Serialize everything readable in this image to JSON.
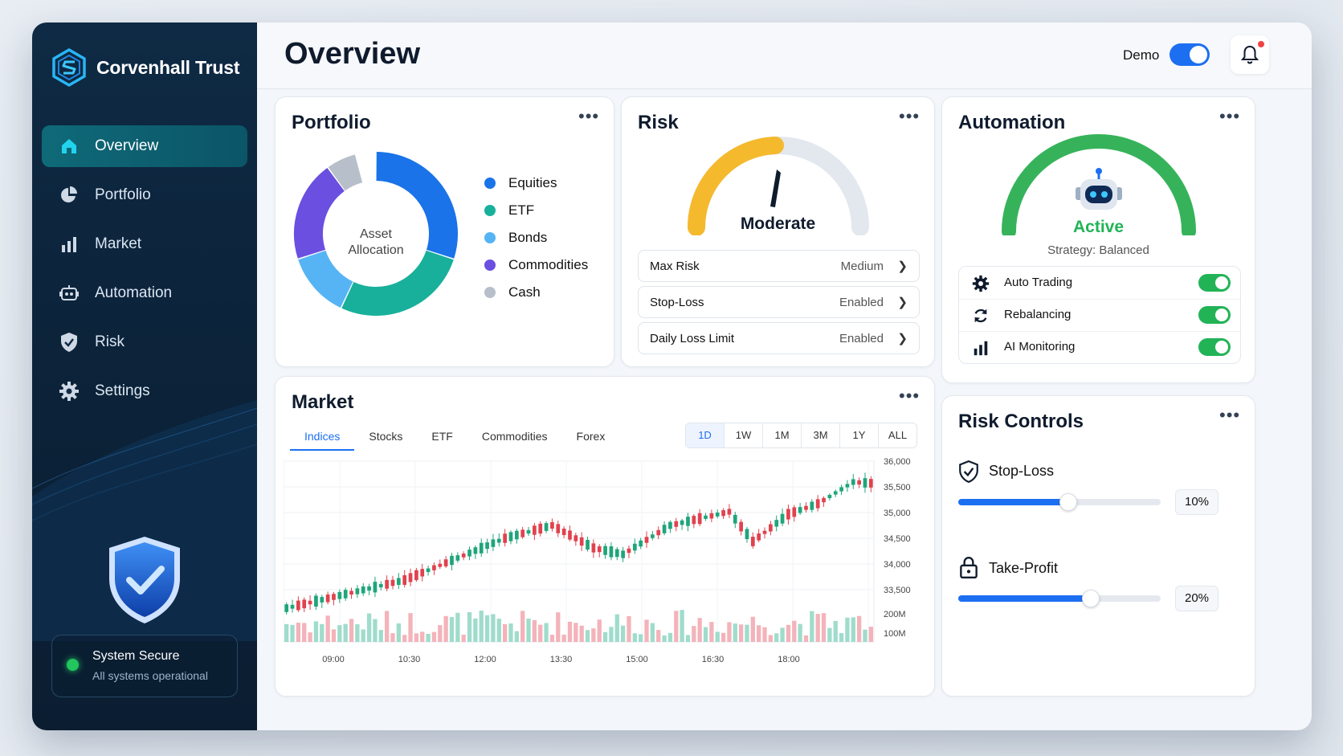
{
  "brand": {
    "name": "Corvenhall Trust",
    "logo_icon": "hexagon-s-logo"
  },
  "sidebar": {
    "items": [
      {
        "label": "Overview",
        "icon": "home-icon"
      },
      {
        "label": "Portfolio",
        "icon": "pie-icon"
      },
      {
        "label": "Market",
        "icon": "bar-chart-icon"
      },
      {
        "label": "Automation",
        "icon": "robot-icon"
      },
      {
        "label": "Risk",
        "icon": "shield-check-icon"
      },
      {
        "label": "Settings",
        "icon": "gear-icon"
      }
    ],
    "active": "Overview",
    "status": {
      "title": "System Secure",
      "subtitle": "All systems operational"
    }
  },
  "header": {
    "title": "Overview",
    "demo_label": "Demo",
    "demo_on": true
  },
  "portfolio": {
    "title": "Portfolio",
    "center_line1": "Asset",
    "center_line2": "Allocation",
    "legend": [
      {
        "label": "Equities",
        "color": "#1a73e8"
      },
      {
        "label": "ETF",
        "color": "#18b09b"
      },
      {
        "label": "Bonds",
        "color": "#56b4f5"
      },
      {
        "label": "Commodities",
        "color": "#6a4fe0"
      },
      {
        "label": "Cash",
        "color": "#b7bfca"
      }
    ]
  },
  "risk": {
    "title": "Risk",
    "gauge_label": "Moderate",
    "rows": [
      {
        "label": "Max Risk",
        "value": "Medium"
      },
      {
        "label": "Stop-Loss",
        "value": "Enabled"
      },
      {
        "label": "Daily Loss Limit",
        "value": "Enabled"
      }
    ]
  },
  "automation": {
    "title": "Automation",
    "status": "Active",
    "strategy": "Strategy: Balanced",
    "rows": [
      {
        "label": "Auto Trading",
        "icon": "gear-icon",
        "on": true
      },
      {
        "label": "Rebalancing",
        "icon": "refresh-icon",
        "on": true
      },
      {
        "label": "AI Monitoring",
        "icon": "bar-chart-icon",
        "on": true
      }
    ]
  },
  "market": {
    "title": "Market",
    "tabs": [
      "Indices",
      "Stocks",
      "ETF",
      "Commodities",
      "Forex"
    ],
    "active_tab": "Indices",
    "ranges": [
      "1D",
      "1W",
      "1M",
      "3M",
      "1Y",
      "ALL"
    ],
    "active_range": "1D",
    "price_ticks": [
      "36,000",
      "35,500",
      "35,000",
      "34,500",
      "34,000",
      "33,500"
    ],
    "volume_ticks": [
      "200M",
      "100M"
    ],
    "time_ticks": [
      "09:00",
      "10:30",
      "12:00",
      "13:30",
      "15:00",
      "16:30",
      "18:00"
    ]
  },
  "risk_controls": {
    "title": "Risk Controls",
    "stop_loss": {
      "label": "Stop-Loss",
      "value": "10%",
      "level": 0.54
    },
    "take_profit": {
      "label": "Take-Profit",
      "value": "20%",
      "level": 0.65
    }
  },
  "colors": {
    "accent": "#1d6ff2",
    "up": "#1fa57a",
    "down": "#e0424e",
    "sidebar": "#0f2a44",
    "success": "#22b357"
  }
}
